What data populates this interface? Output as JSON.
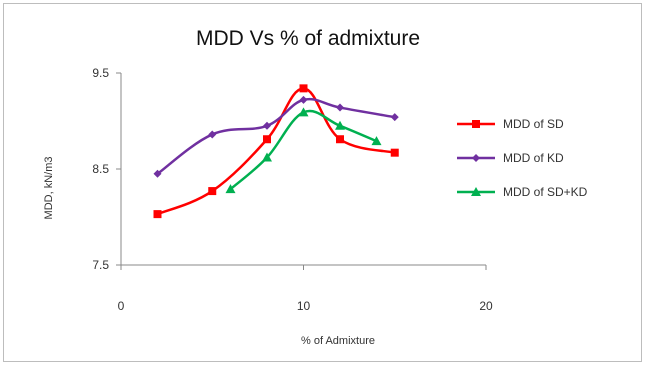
{
  "chart_data": {
    "type": "line",
    "title": "MDD Vs % of admixture",
    "xlabel": "% of Admixture",
    "ylabel": "MDD, kN/m3",
    "xlim": [
      0,
      20
    ],
    "ylim": [
      7.5,
      9.5
    ],
    "x_ticks": [
      "0",
      "10",
      "20"
    ],
    "y_ticks": [
      "9.5",
      "8.5",
      "7.5"
    ],
    "grid": false,
    "legend_position": "right",
    "series": [
      {
        "name": "MDD of SD",
        "color": "#ff0000",
        "marker": "square",
        "points": [
          [
            2,
            8.03
          ],
          [
            5,
            8.27
          ],
          [
            8,
            8.81
          ],
          [
            10,
            9.34
          ],
          [
            12,
            8.81
          ],
          [
            15,
            8.67
          ]
        ]
      },
      {
        "name": "MDD of KD",
        "color": "#7030a0",
        "marker": "diamond",
        "points": [
          [
            2,
            8.45
          ],
          [
            5,
            8.86
          ],
          [
            8,
            8.95
          ],
          [
            10,
            9.22
          ],
          [
            12,
            9.14
          ],
          [
            15,
            9.04
          ]
        ]
      },
      {
        "name": "MDD of SD+KD",
        "color": "#00b050",
        "marker": "triangle",
        "points": [
          [
            6,
            8.29
          ],
          [
            8,
            8.62
          ],
          [
            10,
            9.09
          ],
          [
            12,
            8.95
          ],
          [
            14,
            8.79
          ]
        ]
      }
    ]
  }
}
